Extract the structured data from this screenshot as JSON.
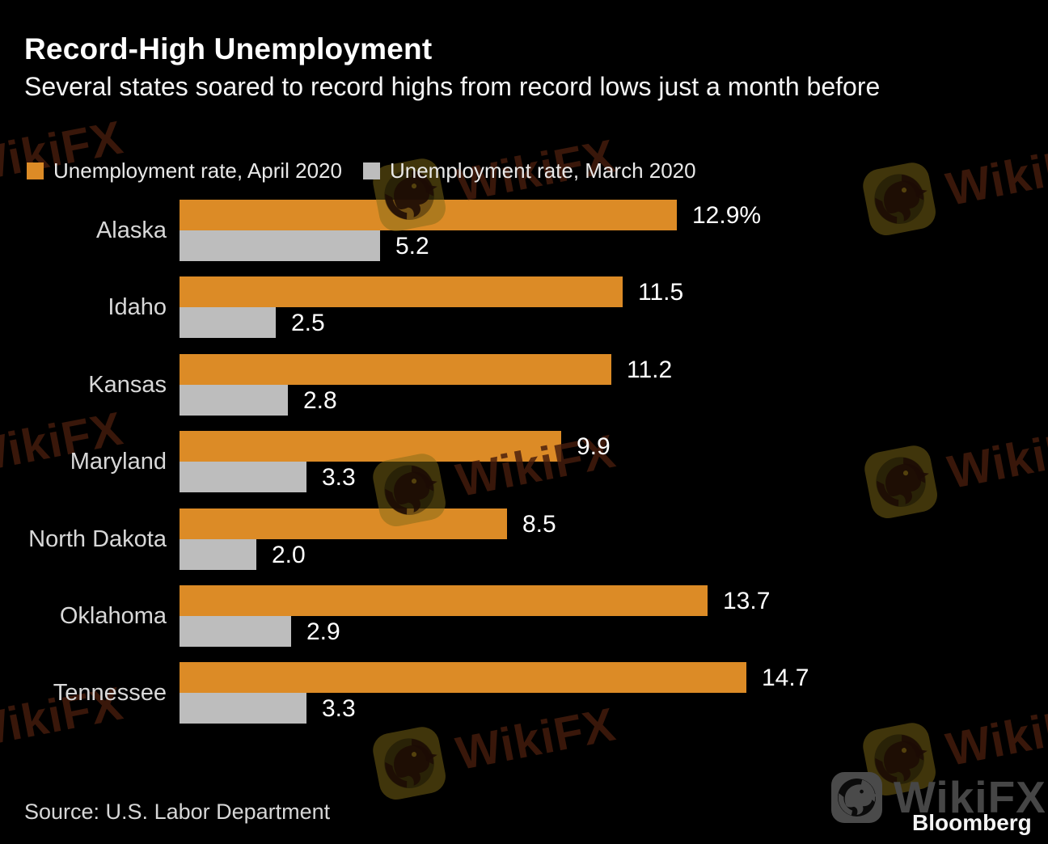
{
  "header": {
    "title": "Record-High Unemployment",
    "subtitle": "Several states soared to record highs from record lows just a month before"
  },
  "legend": {
    "items": [
      {
        "label": "Unemployment rate, April 2020",
        "color": "#dc8b26"
      },
      {
        "label": "Unemployment rate, March 2020",
        "color": "#bdbdbd"
      }
    ]
  },
  "chart_data": {
    "type": "bar",
    "orientation": "horizontal",
    "title": "Record-High Unemployment",
    "subtitle": "Several states soared to record highs from record lows just a month before",
    "categories": [
      "Alaska",
      "Idaho",
      "Kansas",
      "Maryland",
      "North Dakota",
      "Oklahoma",
      "Tennessee"
    ],
    "series": [
      {
        "name": "Unemployment rate, April 2020",
        "color": "#dc8b26",
        "values": [
          12.9,
          11.5,
          11.2,
          9.9,
          8.5,
          13.7,
          14.7
        ],
        "display_labels": [
          "12.9%",
          "11.5",
          "11.2",
          "9.9",
          "8.5",
          "13.7",
          "14.7"
        ]
      },
      {
        "name": "Unemployment rate, March 2020",
        "color": "#bdbdbd",
        "values": [
          5.2,
          2.5,
          2.8,
          3.3,
          2.0,
          2.9,
          3.3
        ],
        "display_labels": [
          "5.2",
          "2.5",
          "2.8",
          "3.3",
          "2.0",
          "2.9",
          "3.3"
        ]
      }
    ],
    "xlim": [
      0,
      15
    ],
    "grid": false,
    "legend_position": "top",
    "value_labels": "outside-end"
  },
  "footer": {
    "source": "Source: U.S. Labor Department",
    "bloomberg": "Bloomberg"
  },
  "branding": {
    "watermark": "WikiFX",
    "watermark_gray_color": "#464646",
    "watermark_olive_color": "#46390a"
  }
}
